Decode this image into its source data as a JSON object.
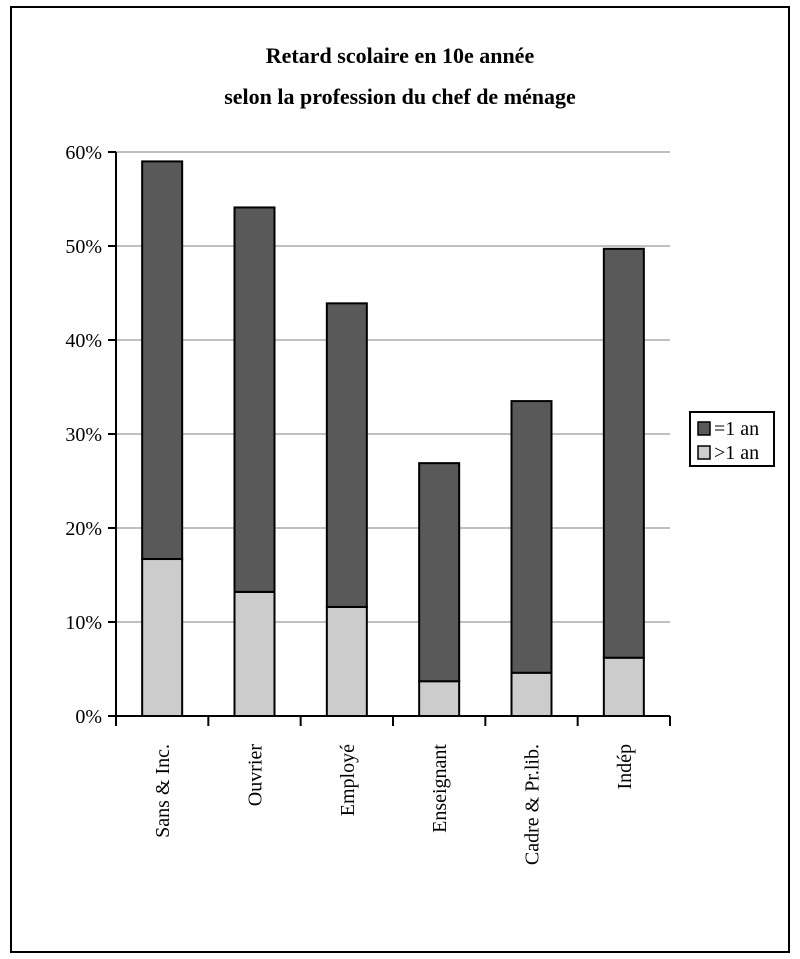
{
  "chart_data": {
    "type": "bar",
    "stacked": true,
    "title_lines": [
      "Retard scolaire en 10e année",
      "selon la profession du chef de ménage"
    ],
    "categories": [
      "Sans & Inc.",
      "Ouvrier",
      "Employé",
      "Enseignant",
      "Cadre & Pr.lib.",
      "Indép"
    ],
    "series": [
      {
        "name": ">1 an",
        "color": "#cccccc",
        "values": [
          16.7,
          13.2,
          11.6,
          3.7,
          4.6,
          6.2
        ]
      },
      {
        "name": "=1 an",
        "color": "#595959",
        "values": [
          42.3,
          40.9,
          32.3,
          23.2,
          28.9,
          43.5
        ]
      }
    ],
    "legend_order": [
      "=1 an",
      ">1 an"
    ],
    "legend_position": "right",
    "ylim": [
      0,
      60
    ],
    "yticks": [
      0,
      10,
      20,
      30,
      40,
      50,
      60
    ],
    "ytick_labels": [
      "0%",
      "10%",
      "20%",
      "30%",
      "40%",
      "50%",
      "60%"
    ],
    "grid": true,
    "xlabel": "",
    "ylabel": ""
  }
}
